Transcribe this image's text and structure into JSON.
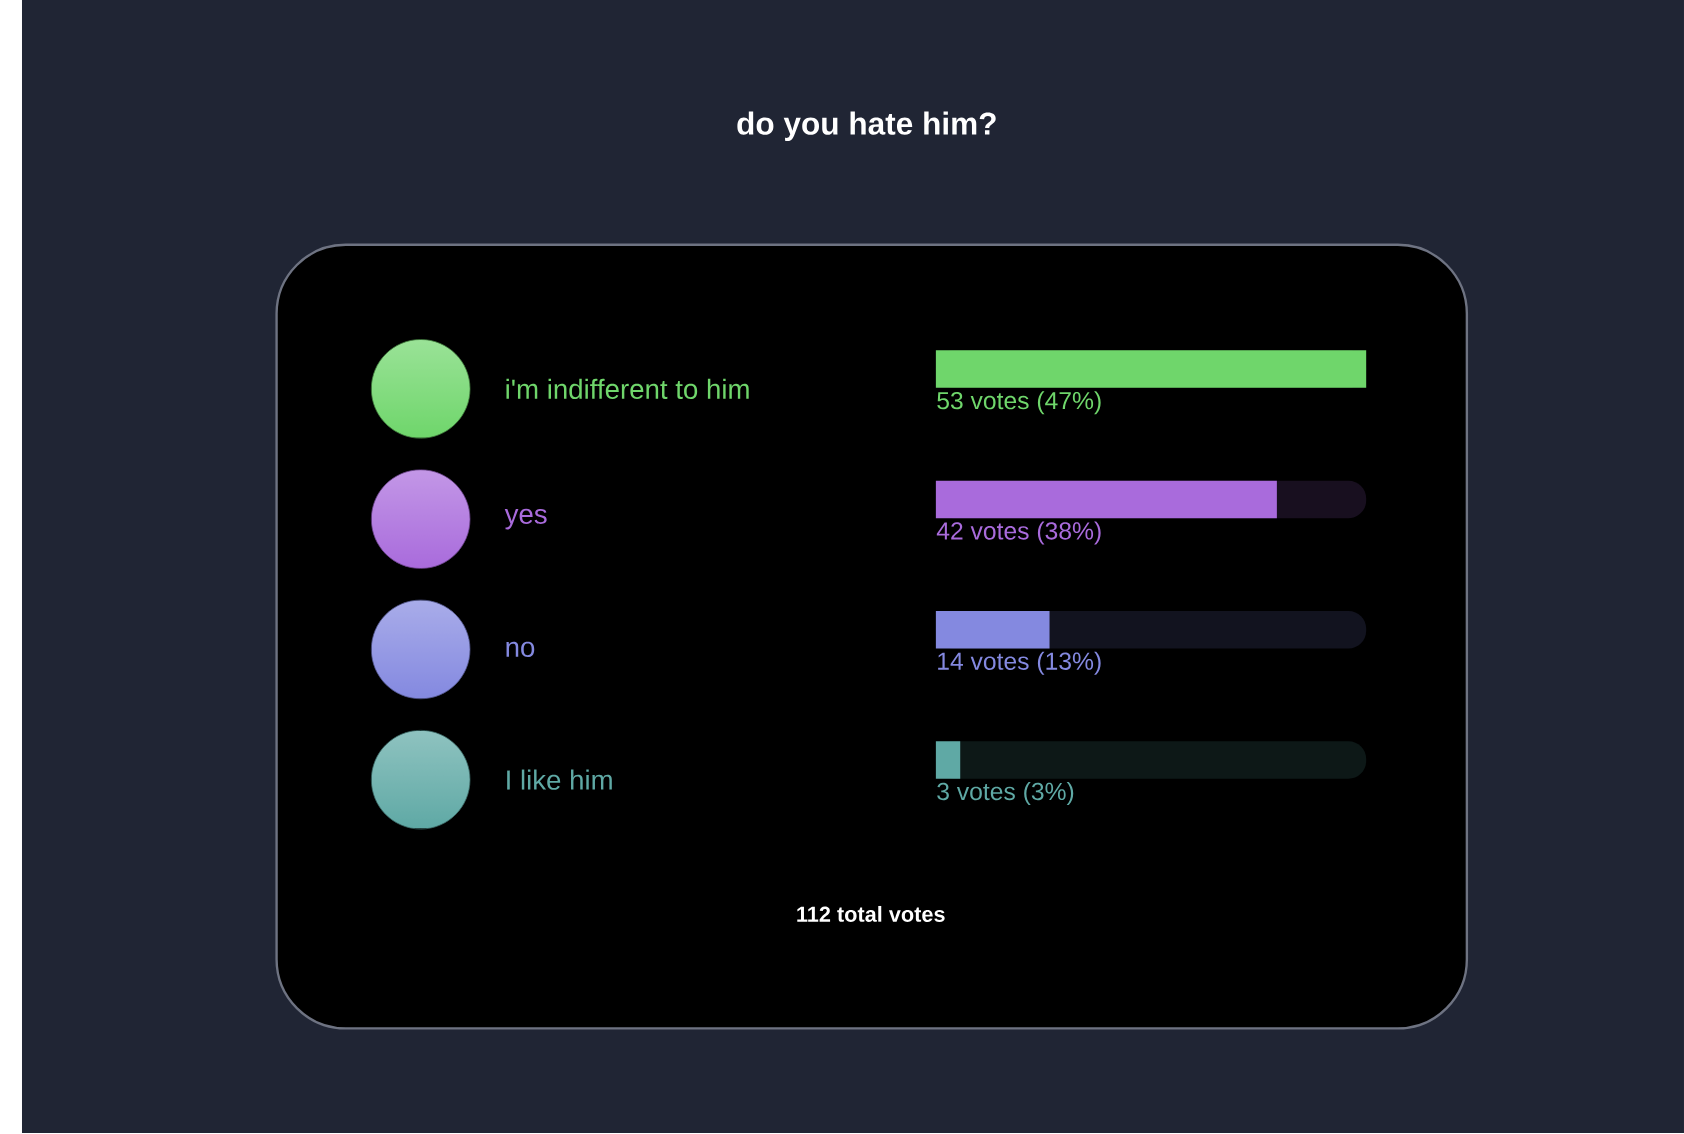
{
  "chart_data": {
    "type": "bar",
    "orientation": "horizontal",
    "title": "do you hate him?",
    "categories": [
      "i'm indifferent to him",
      "yes",
      "no",
      "I like him"
    ],
    "values": [
      53,
      42,
      14,
      3
    ],
    "colors": [
      "#6fd66b",
      "#a96bdc",
      "#8489e0",
      "#5fa9a5"
    ],
    "value_labels": [
      "53 votes (47%)",
      "42 votes (38%)",
      "14 votes (13%)",
      "3 votes (3%)"
    ],
    "xlim": [
      0,
      53
    ],
    "tick_labels": "y",
    "annotations": [
      "112 total votes"
    ]
  }
}
